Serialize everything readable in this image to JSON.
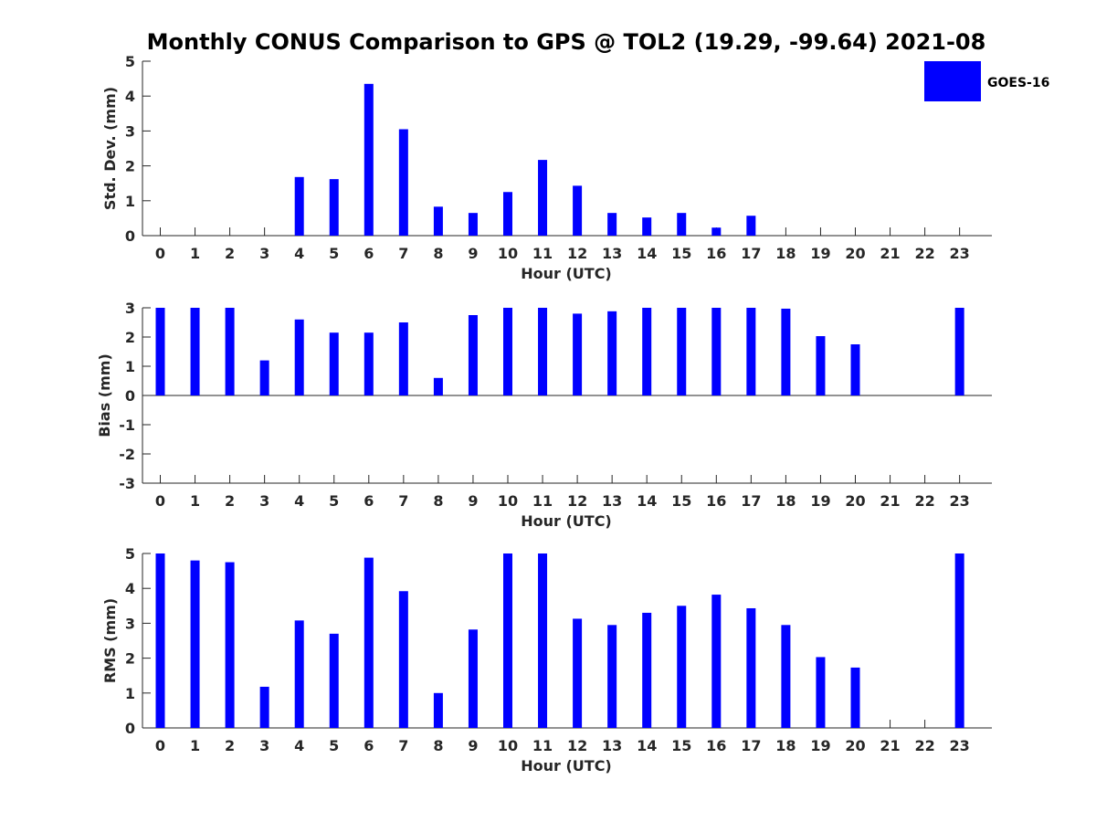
{
  "title": "Monthly CONUS Comparison to GPS @ TOL2 (19.29, -99.64) 2021-08",
  "legend": {
    "label": "GOES-16",
    "color": "#0000ff"
  },
  "chart_data": [
    {
      "type": "bar",
      "name": "std-dev",
      "ylabel": "Std. Dev. (mm)",
      "xlabel": "Hour (UTC)",
      "ylim": [
        0,
        5
      ],
      "yticks": [
        "0",
        "1",
        "2",
        "3",
        "4",
        "5"
      ],
      "categories": [
        "0",
        "1",
        "2",
        "3",
        "4",
        "5",
        "6",
        "7",
        "8",
        "9",
        "10",
        "11",
        "12",
        "13",
        "14",
        "15",
        "16",
        "17",
        "18",
        "19",
        "20",
        "21",
        "22",
        "23"
      ],
      "values": [
        null,
        null,
        null,
        null,
        1.68,
        1.62,
        4.35,
        3.05,
        0.83,
        0.65,
        1.25,
        2.17,
        1.43,
        0.65,
        0.52,
        0.65,
        0.23,
        0.57,
        null,
        null,
        null,
        null,
        null,
        null
      ]
    },
    {
      "type": "bar",
      "name": "bias",
      "ylabel": "Bias (mm)",
      "xlabel": "Hour (UTC)",
      "ylim": [
        -3,
        3
      ],
      "yticks": [
        "-3",
        "-2",
        "-1",
        "0",
        "1",
        "2",
        "3"
      ],
      "categories": [
        "0",
        "1",
        "2",
        "3",
        "4",
        "5",
        "6",
        "7",
        "8",
        "9",
        "10",
        "11",
        "12",
        "13",
        "14",
        "15",
        "16",
        "17",
        "18",
        "19",
        "20",
        "21",
        "22",
        "23"
      ],
      "values": [
        3.0,
        3.0,
        3.0,
        1.2,
        2.6,
        2.15,
        2.15,
        2.5,
        0.6,
        2.75,
        3.0,
        3.0,
        2.8,
        2.88,
        3.0,
        3.0,
        3.0,
        3.0,
        2.97,
        2.03,
        1.75,
        null,
        null,
        3.0
      ]
    },
    {
      "type": "bar",
      "name": "rms",
      "ylabel": "RMS (mm)",
      "xlabel": "Hour (UTC)",
      "ylim": [
        0,
        5
      ],
      "yticks": [
        "0",
        "1",
        "2",
        "3",
        "4",
        "5"
      ],
      "categories": [
        "0",
        "1",
        "2",
        "3",
        "4",
        "5",
        "6",
        "7",
        "8",
        "9",
        "10",
        "11",
        "12",
        "13",
        "14",
        "15",
        "16",
        "17",
        "18",
        "19",
        "20",
        "21",
        "22",
        "23"
      ],
      "values": [
        5.0,
        4.8,
        4.75,
        1.18,
        3.08,
        2.7,
        4.88,
        3.92,
        1.0,
        2.82,
        5.0,
        5.0,
        3.13,
        2.95,
        3.3,
        3.5,
        3.82,
        3.43,
        2.95,
        2.03,
        1.73,
        null,
        null,
        5.0
      ]
    }
  ]
}
